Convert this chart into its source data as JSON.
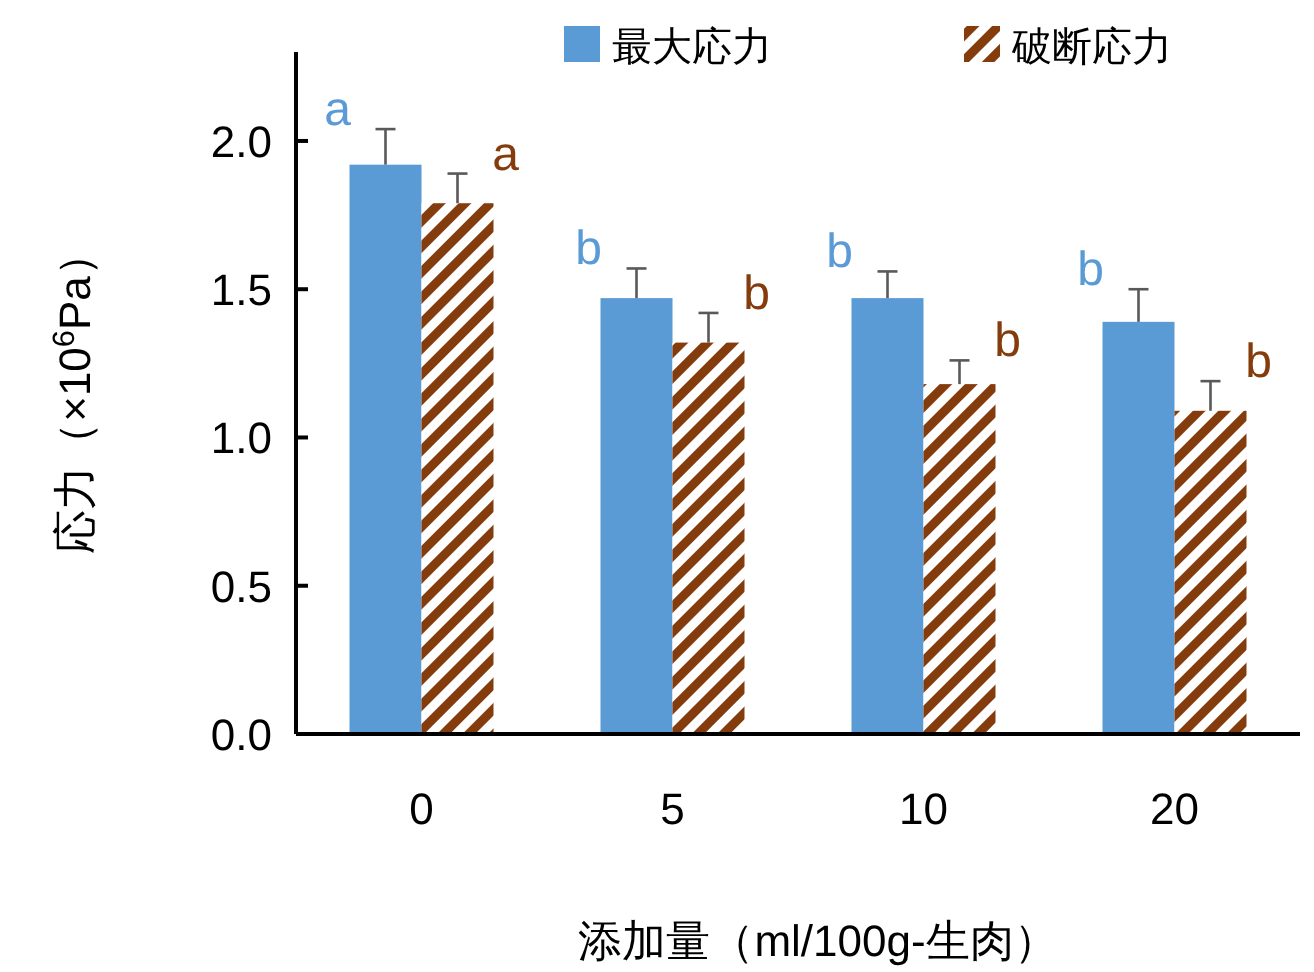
{
  "chart_data": {
    "type": "bar",
    "ylabel": "応力（×10$^{6}$Pa）",
    "xlabel": "添加量（ml/100g-生肉）",
    "categories": [
      "0",
      "5",
      "10",
      "20"
    ],
    "series": [
      {
        "name": "最大応力",
        "color": "#5b9bd5",
        "values": [
          1.92,
          1.47,
          1.47,
          1.39
        ],
        "errors": [
          0.12,
          0.1,
          0.09,
          0.11
        ],
        "value_labels": [
          "a",
          "b",
          "b",
          "b"
        ]
      },
      {
        "name": "破断応力",
        "color": "#843c0c",
        "values": [
          1.79,
          1.32,
          1.18,
          1.09
        ],
        "errors": [
          0.1,
          0.1,
          0.08,
          0.1
        ],
        "value_labels": [
          "a",
          "b",
          "b",
          "b"
        ]
      }
    ],
    "ylim": [
      0,
      2.3
    ],
    "yticks": [
      {
        "value": 0,
        "label": "0.0"
      },
      {
        "value": 0.5,
        "label": "0.5"
      },
      {
        "value": 1,
        "label": "1.0"
      },
      {
        "value": 1.5,
        "label": "1.5"
      },
      {
        "value": 2,
        "label": "2.0"
      }
    ],
    "grid": false,
    "legend": "top right"
  }
}
